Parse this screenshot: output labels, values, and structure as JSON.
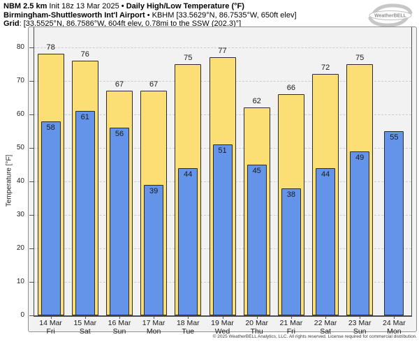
{
  "header": {
    "model": "NBM 2.5 km",
    "init": "Init 18z 13 Mar 2025",
    "product": "• Daily High/Low Temperature (°F)",
    "station_name": "Birmingham-Shuttlesworth Int'l Airport",
    "station_meta": "• KBHM [33.5629°N, 86.7535°W, 650ft elev]",
    "grid_label": "Grid",
    "grid_meta": ": [33.5525°N, 86.7586°W, 604ft elev, 0.78mi to the SSW (202.3)°]"
  },
  "logo": {
    "brand": "WeatherBELL"
  },
  "chart_data": {
    "type": "bar",
    "title": "Daily High/Low Temperature (°F)",
    "ylabel": "Temperature [°F]",
    "ylim": [
      0,
      86
    ],
    "yticks": [
      0,
      10,
      20,
      30,
      40,
      50,
      60,
      70,
      80
    ],
    "grid": "horizontal-dashed",
    "legend": "none",
    "categories": [
      {
        "date": "14 Mar",
        "day": "Fri"
      },
      {
        "date": "15 Mar",
        "day": "Sat"
      },
      {
        "date": "16 Mar",
        "day": "Sun"
      },
      {
        "date": "17 Mar",
        "day": "Mon"
      },
      {
        "date": "18 Mar",
        "day": "Tue"
      },
      {
        "date": "19 Mar",
        "day": "Wed"
      },
      {
        "date": "20 Mar",
        "day": "Thu"
      },
      {
        "date": "21 Mar",
        "day": "Fri"
      },
      {
        "date": "22 Mar",
        "day": "Sat"
      },
      {
        "date": "23 Mar",
        "day": "Sun"
      },
      {
        "date": "24 Mar",
        "day": "Mon"
      }
    ],
    "series": [
      {
        "name": "High",
        "color": "#fbde74",
        "values": [
          78,
          76,
          67,
          67,
          75,
          77,
          62,
          66,
          72,
          75,
          null
        ]
      },
      {
        "name": "Low",
        "color": "#6394ea",
        "values": [
          58,
          61,
          56,
          39,
          44,
          51,
          45,
          38,
          44,
          49,
          55
        ]
      }
    ]
  },
  "footer": {
    "copyright": "© 2025 WeatherBELL Analytics, LLC. All rights reserved. License required for commercial distribution."
  }
}
